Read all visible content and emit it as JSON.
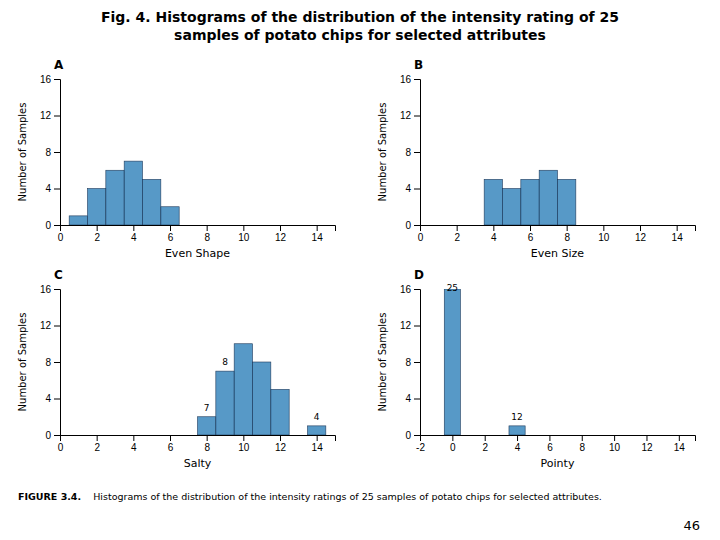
{
  "title": [
    "Fig. 4.  Histograms of the distribution of the intensity rating of 25",
    "samples of potato chips for selected attributes"
  ],
  "caption": {
    "label": "FIGURE 3.4.",
    "text": "    Histograms of the distribution of the intensity ratings of 25 samples of potato chips for selected attributes."
  },
  "page_number": "46",
  "chart_data": [
    {
      "type": "histogram",
      "title": "A",
      "xlabel": "Even Shape",
      "ylabel": "Number of Samples",
      "bins": [
        0.5,
        1.5,
        2.5,
        3.5,
        4.5,
        5.5,
        6.5
      ],
      "values": [
        1,
        4,
        6,
        7,
        5,
        2
      ],
      "xlim": [
        0,
        15
      ],
      "ylim": [
        0,
        16
      ],
      "xticks": [
        0,
        2,
        4,
        6,
        8,
        10,
        12,
        14
      ],
      "yticks": [
        0,
        4,
        8,
        12,
        16
      ],
      "annotations": []
    },
    {
      "type": "histogram",
      "title": "B",
      "xlabel": "Even Size",
      "ylabel": "Number of Samples",
      "bins": [
        3.5,
        4.5,
        5.5,
        6.5,
        7.5,
        8.5
      ],
      "values": [
        5,
        4,
        5,
        6,
        5
      ],
      "xlim": [
        0,
        15
      ],
      "ylim": [
        0,
        16
      ],
      "xticks": [
        0,
        2,
        4,
        6,
        8,
        10,
        12,
        14
      ],
      "yticks": [
        0,
        4,
        8,
        12,
        16
      ],
      "annotations": []
    },
    {
      "type": "histogram",
      "title": "C",
      "xlabel": "Salty",
      "ylabel": "Number of Samples",
      "bins": [
        7.5,
        8.5,
        9.5,
        10.5,
        11.5,
        12.5,
        13.5,
        14.5
      ],
      "values": [
        2,
        7,
        10,
        8,
        5,
        0,
        1
      ],
      "xlim": [
        0,
        15
      ],
      "ylim": [
        0,
        16
      ],
      "xticks": [
        0,
        2,
        4,
        6,
        8,
        10,
        12,
        14
      ],
      "yticks": [
        0,
        4,
        8,
        12,
        16
      ],
      "annotations": [
        {
          "text": "7",
          "x": 8.0,
          "y": 2.4
        },
        {
          "text": "8",
          "x": 9.0,
          "y": 7.4
        },
        {
          "text": "4",
          "x": 14.0,
          "y": 1.4
        }
      ]
    },
    {
      "type": "histogram",
      "title": "D",
      "xlabel": "Pointy",
      "ylabel": "Number of Samples",
      "bins": [
        -0.5,
        0.5,
        1.5,
        2.5,
        3.5,
        4.5
      ],
      "values": [
        16,
        0,
        0,
        0,
        1
      ],
      "xlim": [
        -2,
        15
      ],
      "ylim": [
        0,
        16
      ],
      "xticks": [
        -2,
        0,
        2,
        4,
        6,
        8,
        10,
        12,
        14
      ],
      "yticks": [
        0,
        4,
        8,
        12,
        16
      ],
      "annotations": [
        {
          "text": "25",
          "x": 0.0,
          "y": 15.6
        },
        {
          "text": "12",
          "x": 4.0,
          "y": 1.4
        }
      ]
    }
  ]
}
